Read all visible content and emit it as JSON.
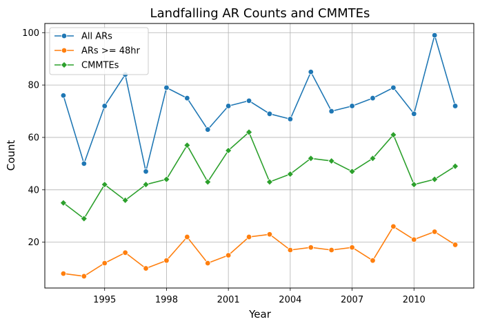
{
  "chart_data": {
    "type": "line",
    "title": "Landfalling AR Counts and CMMTEs",
    "xlabel": "Year",
    "ylabel": "Count",
    "x": [
      1993,
      1994,
      1995,
      1996,
      1997,
      1998,
      1999,
      2000,
      2001,
      2002,
      2003,
      2004,
      2005,
      2006,
      2007,
      2008,
      2009,
      2010,
      2011,
      2012
    ],
    "xlim": [
      1992.1,
      2012.9
    ],
    "ylim": [
      2.5,
      103.5
    ],
    "xticks": [
      1995,
      1998,
      2001,
      2004,
      2007,
      2010
    ],
    "yticks": [
      20,
      40,
      60,
      80,
      100
    ],
    "grid": true,
    "legend_position": "top-left",
    "series": [
      {
        "name": "All ARs",
        "color": "#1f77b4",
        "marker": "circle",
        "values": [
          76,
          50,
          72,
          84,
          47,
          79,
          75,
          63,
          72,
          74,
          69,
          67,
          85,
          70,
          72,
          75,
          79,
          69,
          99,
          72
        ]
      },
      {
        "name": "ARs >= 48hr",
        "color": "#ff7f0e",
        "marker": "circle",
        "values": [
          8,
          7,
          12,
          16,
          10,
          13,
          22,
          12,
          15,
          22,
          23,
          17,
          18,
          17,
          18,
          13,
          26,
          21,
          24,
          19
        ]
      },
      {
        "name": "CMMTEs",
        "color": "#2ca02c",
        "marker": "diamond",
        "values": [
          35,
          29,
          42,
          36,
          42,
          44,
          57,
          43,
          55,
          62,
          43,
          46,
          52,
          51,
          47,
          52,
          61,
          42,
          44,
          49
        ]
      }
    ]
  }
}
